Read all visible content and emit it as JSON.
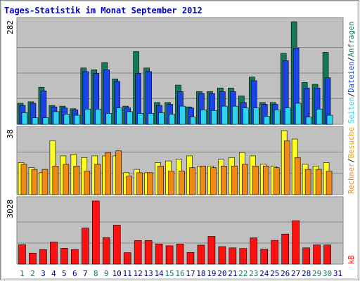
{
  "title": "Tages-Statistik im Monat September 2012",
  "colors": {
    "background": "#ffffff",
    "frame": "#888888",
    "plot_bg": "#c0c0c0",
    "grid": "#888888",
    "title": "#0000cc",
    "hits": "#127a5a",
    "files": "#1a44e8",
    "pages": "#2cd4f0",
    "visits": "#ffff20",
    "sites": "#f08a14",
    "kb": "#ff1010",
    "weekend_label": "#127a5a",
    "weekday_label": "#000080"
  },
  "legend": {
    "anfragen": "Anfragen",
    "dateien": "Dateien",
    "seiten": "Seiten",
    "besuche": "Besuche",
    "rechner": "Rechner",
    "kb": "kB",
    "sep": "/"
  },
  "chart_data": [
    {
      "type": "bar",
      "panel": "top",
      "ymax_label": "282",
      "ylim": [
        0,
        282
      ],
      "x": [
        1,
        2,
        3,
        4,
        5,
        6,
        7,
        8,
        9,
        10,
        11,
        12,
        13,
        14,
        15,
        16,
        17,
        18,
        19,
        20,
        21,
        22,
        23,
        24,
        25,
        26,
        27,
        28,
        29,
        30,
        31
      ],
      "weekend_days": [
        1,
        2,
        8,
        9,
        15,
        16,
        22,
        23,
        29,
        30
      ],
      "series": [
        {
          "name": "Anfragen",
          "values": [
            58,
            62,
            102,
            52,
            50,
            43,
            155,
            150,
            170,
            125,
            50,
            200,
            155,
            60,
            60,
            108,
            48,
            90,
            90,
            100,
            100,
            78,
            130,
            60,
            60,
            195,
            282,
            115,
            110,
            198,
            0
          ]
        },
        {
          "name": "Dateien",
          "values": [
            52,
            58,
            92,
            48,
            45,
            40,
            145,
            140,
            150,
            118,
            45,
            140,
            145,
            52,
            55,
            90,
            45,
            85,
            85,
            90,
            90,
            60,
            120,
            55,
            55,
            175,
            210,
            100,
            100,
            128,
            0
          ]
        },
        {
          "name": "Seiten",
          "values": [
            32,
            18,
            18,
            35,
            28,
            25,
            42,
            42,
            30,
            45,
            35,
            30,
            30,
            32,
            28,
            50,
            20,
            40,
            38,
            50,
            50,
            45,
            45,
            22,
            40,
            45,
            58,
            20,
            42,
            25,
            0
          ]
        }
      ]
    },
    {
      "type": "bar",
      "panel": "middle",
      "ymax_label": "38",
      "ylim": [
        0,
        38
      ],
      "x": [
        1,
        2,
        3,
        4,
        5,
        6,
        7,
        8,
        9,
        10,
        11,
        12,
        13,
        14,
        15,
        16,
        17,
        18,
        19,
        20,
        21,
        22,
        23,
        24,
        25,
        26,
        27,
        28,
        29,
        30,
        31
      ],
      "series": [
        {
          "name": "Besuche",
          "values": [
            19,
            16,
            13,
            32,
            23,
            24,
            22,
            23,
            23,
            23,
            13,
            15,
            13,
            19,
            20,
            21,
            23,
            17,
            17,
            21,
            22,
            25,
            23,
            18,
            17,
            38,
            33,
            18,
            17,
            19,
            0
          ]
        },
        {
          "name": "Rechner",
          "values": [
            18,
            15,
            15,
            17,
            18,
            17,
            14,
            18,
            25,
            26,
            11,
            13,
            13,
            17,
            14,
            14,
            16,
            17,
            16,
            17,
            17,
            18,
            17,
            17,
            16,
            32,
            22,
            15,
            15,
            14,
            0
          ]
        }
      ]
    },
    {
      "type": "bar",
      "panel": "bottom",
      "ymax_label": "3028",
      "ylim": [
        0,
        3028
      ],
      "x": [
        1,
        2,
        3,
        4,
        5,
        6,
        7,
        8,
        9,
        10,
        11,
        12,
        13,
        14,
        15,
        16,
        17,
        18,
        19,
        20,
        21,
        22,
        23,
        24,
        25,
        26,
        27,
        28,
        29,
        30,
        31
      ],
      "series": [
        {
          "name": "kB",
          "values": [
            930,
            530,
            700,
            1060,
            760,
            700,
            1730,
            3028,
            1270,
            1870,
            550,
            1130,
            1130,
            960,
            880,
            960,
            560,
            910,
            1330,
            840,
            780,
            750,
            1260,
            720,
            1140,
            1440,
            2080,
            780,
            920,
            920,
            0
          ]
        }
      ]
    }
  ]
}
